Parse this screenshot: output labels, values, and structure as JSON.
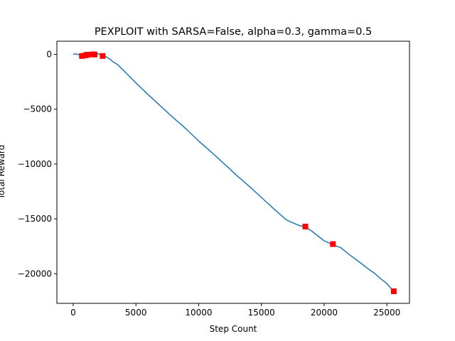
{
  "chart_data": {
    "type": "line",
    "title": "PEXPLOIT with SARSA=False, alpha=0.3, gamma=0.5",
    "xlabel": "Step Count",
    "ylabel": "Total Reward",
    "xlim": [
      -1300,
      26800
    ],
    "ylim": [
      -22700,
      1200
    ],
    "xticks": [
      0,
      5000,
      10000,
      15000,
      20000,
      25000
    ],
    "yticks": [
      0,
      -5000,
      -10000,
      -15000,
      -20000
    ],
    "ytick_labels": [
      "0",
      "−5000",
      "−10000",
      "−15000",
      "−20000"
    ],
    "grid": false,
    "line_color": "#1f77b4",
    "marker_color": "#ff0000",
    "series": [
      {
        "x": [
          0,
          200,
          400,
          600,
          800,
          1000,
          1200,
          1400,
          1600,
          1800,
          2000,
          2200,
          2400,
          2600,
          2800,
          3000,
          3200,
          3500,
          4000,
          5000,
          6000,
          7000,
          8000,
          9000,
          10000,
          11000,
          12000,
          13000,
          14000,
          15000,
          16000,
          17000,
          18000,
          18500,
          19000,
          19500,
          20000,
          20500,
          20700,
          21000,
          21300,
          22000,
          23000,
          23500,
          24000,
          24500,
          25000,
          25300,
          25600
        ],
        "y": [
          0,
          50,
          -20,
          10,
          -60,
          30,
          -20,
          70,
          20,
          90,
          40,
          0,
          -100,
          -200,
          -350,
          -500,
          -700,
          -900,
          -1450,
          -2600,
          -3700,
          -4750,
          -5800,
          -6800,
          -7900,
          -8900,
          -9950,
          -11000,
          -12000,
          -13050,
          -14100,
          -15100,
          -15600,
          -15750,
          -16100,
          -16550,
          -17000,
          -17250,
          -17300,
          -17500,
          -17600,
          -18250,
          -19100,
          -19550,
          -19950,
          -20450,
          -20900,
          -21300,
          -21600
        ]
      }
    ],
    "markers": [
      {
        "x": 700,
        "y": -150
      },
      {
        "x": 1000,
        "y": -80
      },
      {
        "x": 1150,
        "y": -30
      },
      {
        "x": 1600,
        "y": 0
      },
      {
        "x": 1700,
        "y": -20
      },
      {
        "x": 2350,
        "y": -150
      },
      {
        "x": 18500,
        "y": -15700
      },
      {
        "x": 20700,
        "y": -17300
      },
      {
        "x": 25550,
        "y": -21600
      }
    ]
  }
}
